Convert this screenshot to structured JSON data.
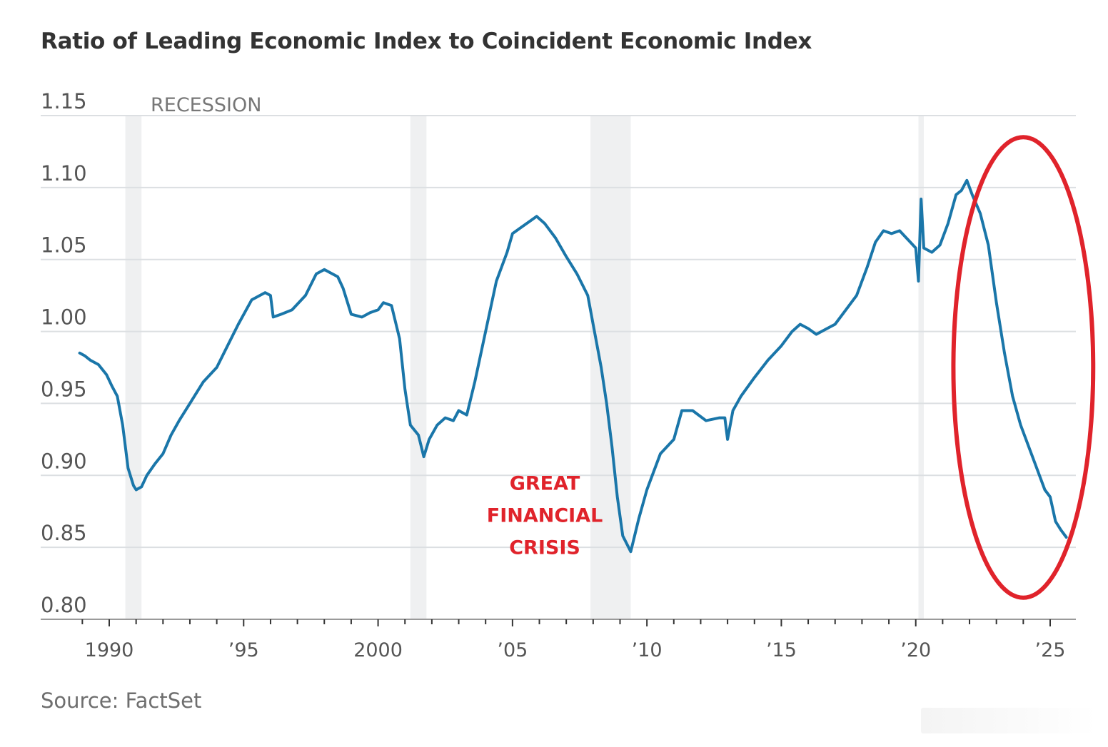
{
  "chart_data": {
    "type": "line",
    "title": "Ratio of Leading Economic Index to Coincident Economic Index",
    "source": "Source: FactSet",
    "xlabel": "",
    "ylabel": "",
    "ylim": [
      0.8,
      1.15
    ],
    "xlim": [
      1988.0,
      2026.0
    ],
    "y_ticks": [
      0.8,
      0.85,
      0.9,
      0.95,
      1.0,
      1.05,
      1.1,
      1.15
    ],
    "y_tick_labels": [
      "0.80",
      "0.85",
      "0.90",
      "0.95",
      "1.00",
      "1.05",
      "1.10",
      "1.15"
    ],
    "x_ticks": [
      1990,
      1995,
      2000,
      2005,
      2010,
      2015,
      2020,
      2025
    ],
    "x_tick_labels": [
      "1990",
      "’95",
      "2000",
      "’05",
      "’10",
      "’15",
      "’20",
      "’25"
    ],
    "grid": true,
    "recession_label": "RECESSION",
    "recessions": [
      [
        1990.6,
        1991.2
      ],
      [
        2001.2,
        2001.8
      ],
      [
        2007.9,
        2009.4
      ],
      [
        2020.1,
        2020.3
      ]
    ],
    "annotations": [
      {
        "lines": [
          "GREAT",
          "FINANCIAL",
          "CRISIS"
        ],
        "x": 2006.2,
        "y": 0.89,
        "color": "#e0232b"
      },
      {
        "type": "ellipse",
        "center": [
          2024.0,
          0.975
        ],
        "radius": [
          2.6,
          0.16
        ],
        "color": "#e0232b"
      }
    ],
    "series": [
      {
        "color": "#1a76a9",
        "x": [
          1988.9,
          1989.1,
          1989.3,
          1989.6,
          1989.9,
          1990.1,
          1990.3,
          1990.5,
          1990.7,
          1990.9,
          1991.0,
          1991.2,
          1991.4,
          1991.7,
          1992.0,
          1992.3,
          1992.6,
          1993.0,
          1993.5,
          1994.0,
          1994.4,
          1994.8,
          1995.3,
          1995.8,
          1996.0,
          1996.1,
          1996.4,
          1996.8,
          1997.3,
          1997.7,
          1998.0,
          1998.3,
          1998.5,
          1998.7,
          1999.0,
          1999.4,
          1999.7,
          2000.0,
          2000.2,
          2000.5,
          2000.8,
          2001.0,
          2001.2,
          2001.5,
          2001.7,
          2001.9,
          2002.2,
          2002.5,
          2002.8,
          2003.0,
          2003.3,
          2003.6,
          2004.0,
          2004.4,
          2004.8,
          2005.0,
          2005.3,
          2005.6,
          2005.9,
          2006.2,
          2006.6,
          2007.0,
          2007.4,
          2007.8,
          2008.0,
          2008.3,
          2008.5,
          2008.7,
          2008.9,
          2009.1,
          2009.4,
          2009.7,
          2010.0,
          2010.5,
          2011.0,
          2011.3,
          2011.7,
          2012.2,
          2012.7,
          2012.9,
          2013.0,
          2013.2,
          2013.5,
          2014.0,
          2014.5,
          2015.0,
          2015.4,
          2015.7,
          2016.0,
          2016.3,
          2016.7,
          2017.0,
          2017.4,
          2017.8,
          2018.2,
          2018.5,
          2018.8,
          2019.1,
          2019.4,
          2019.8,
          2020.0,
          2020.1,
          2020.2,
          2020.3,
          2020.6,
          2020.9,
          2021.2,
          2021.5,
          2021.7,
          2021.9,
          2022.1,
          2022.4,
          2022.7,
          2023.0,
          2023.3,
          2023.6,
          2023.9,
          2024.2,
          2024.5,
          2024.8,
          2025.0,
          2025.2,
          2025.4,
          2025.6
        ],
        "values": [
          0.985,
          0.983,
          0.98,
          0.977,
          0.97,
          0.962,
          0.955,
          0.935,
          0.905,
          0.893,
          0.89,
          0.892,
          0.9,
          0.908,
          0.915,
          0.928,
          0.938,
          0.95,
          0.965,
          0.975,
          0.99,
          1.005,
          1.022,
          1.027,
          1.025,
          1.01,
          1.012,
          1.015,
          1.025,
          1.04,
          1.043,
          1.04,
          1.038,
          1.03,
          1.012,
          1.01,
          1.013,
          1.015,
          1.02,
          1.018,
          0.995,
          0.96,
          0.935,
          0.928,
          0.913,
          0.925,
          0.935,
          0.94,
          0.938,
          0.945,
          0.942,
          0.965,
          1.0,
          1.035,
          1.055,
          1.068,
          1.072,
          1.076,
          1.08,
          1.075,
          1.065,
          1.052,
          1.04,
          1.025,
          1.005,
          0.975,
          0.95,
          0.92,
          0.885,
          0.858,
          0.847,
          0.87,
          0.89,
          0.915,
          0.925,
          0.945,
          0.945,
          0.938,
          0.94,
          0.94,
          0.925,
          0.945,
          0.955,
          0.968,
          0.98,
          0.99,
          1.0,
          1.005,
          1.002,
          0.998,
          1.002,
          1.005,
          1.015,
          1.025,
          1.045,
          1.062,
          1.07,
          1.068,
          1.07,
          1.062,
          1.058,
          1.035,
          1.092,
          1.058,
          1.055,
          1.06,
          1.075,
          1.095,
          1.098,
          1.105,
          1.095,
          1.082,
          1.06,
          1.02,
          0.985,
          0.955,
          0.935,
          0.92,
          0.905,
          0.89,
          0.885,
          0.868,
          0.862,
          0.857
        ]
      }
    ]
  }
}
